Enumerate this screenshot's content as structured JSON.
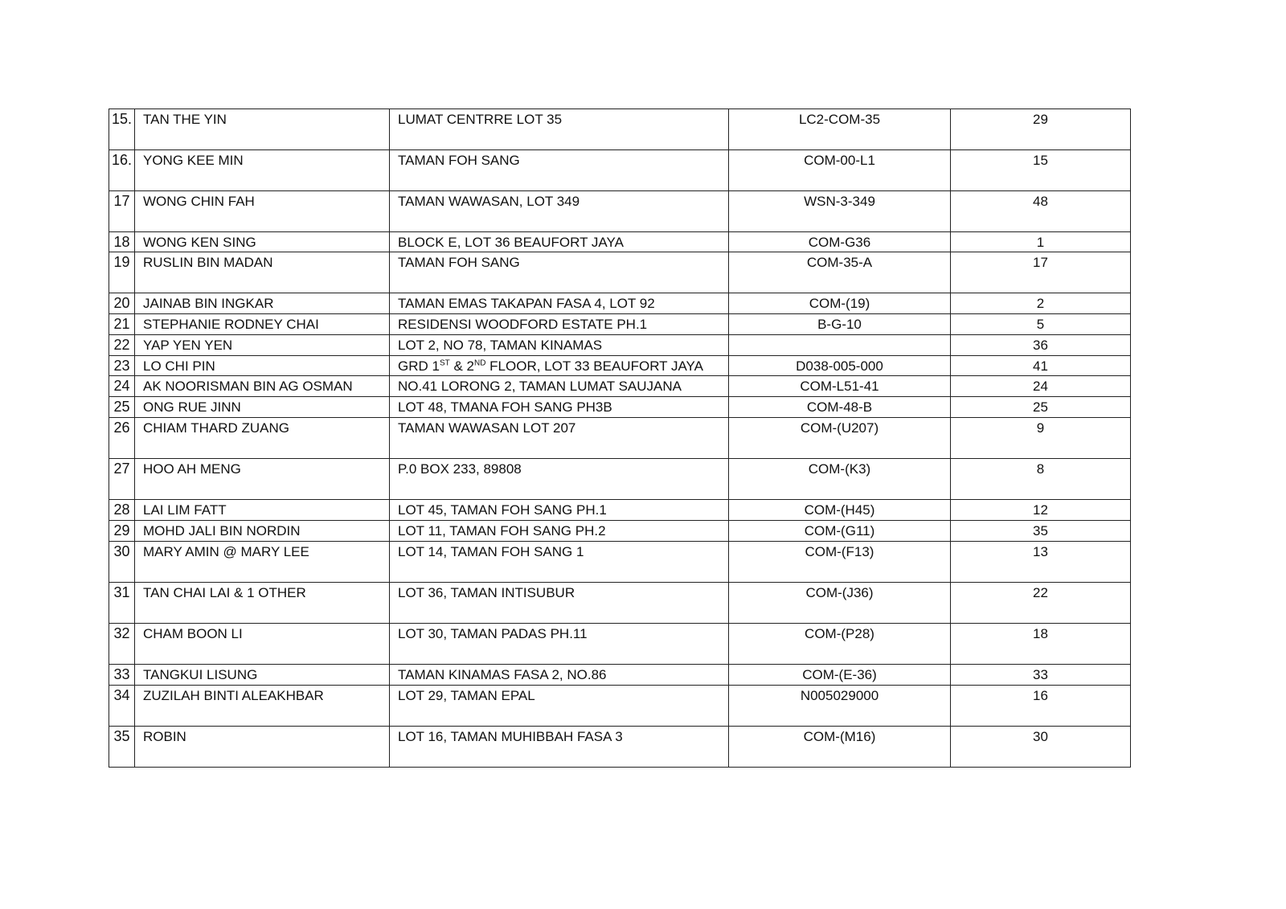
{
  "rows": [
    {
      "no": "15.",
      "name": "TAN THE YIN",
      "address": "LUMAT CENTRRE LOT 35",
      "code": "LC2-COM-35",
      "number": "29"
    },
    {
      "no": "16.",
      "name": "YONG KEE MIN",
      "address": "TAMAN FOH SANG",
      "code": "COM-00-L1",
      "number": "15"
    },
    {
      "no": "17",
      "name": "WONG CHIN FAH",
      "address": "TAMAN WAWASAN, LOT 349",
      "code": "WSN-3-349",
      "number": "48"
    },
    {
      "no": "18",
      "name": "WONG KEN SING",
      "address": "BLOCK E, LOT 36 BEAUFORT JAYA",
      "code": "COM-G36",
      "number": "1"
    },
    {
      "no": "19",
      "name": "RUSLIN BIN MADAN",
      "address": "TAMAN FOH SANG",
      "code": "COM-35-A",
      "number": "17"
    },
    {
      "no": "20",
      "name": "JAINAB BIN INGKAR",
      "address": "TAMAN EMAS TAKAPAN FASA 4, LOT 92",
      "code": "COM-(19)",
      "number": "2"
    },
    {
      "no": "21",
      "name": "STEPHANIE RODNEY CHAI",
      "address": "RESIDENSI WOODFORD ESTATE PH.1",
      "code": "B-G-10",
      "number": "5"
    },
    {
      "no": "22",
      "name": "YAP YEN YEN",
      "address": "LOT 2, NO 78, TAMAN KINAMAS",
      "code": "",
      "number": "36"
    },
    {
      "no": "23",
      "name": "LO CHI PIN",
      "address_parts": [
        {
          "t": "GRD 1"
        },
        {
          "t": "ST",
          "sup": true
        },
        {
          "t": " & 2"
        },
        {
          "t": "ND",
          "sup": true
        },
        {
          "t": " FLOOR, LOT 33 BEAUFORT JAYA"
        }
      ],
      "code": "D038-005-000",
      "number": "41"
    },
    {
      "no": "24",
      "name": "AK NOORISMAN BIN AG OSMAN",
      "address": "NO.41 LORONG 2, TAMAN LUMAT SAUJANA",
      "code": "COM-L51-41",
      "number": "24"
    },
    {
      "no": "25",
      "name": "ONG RUE JINN",
      "address": "LOT 48, TMANA FOH SANG PH3B",
      "code": "COM-48-B",
      "number": "25"
    },
    {
      "no": "26",
      "name": "CHIAM THARD ZUANG",
      "address": "TAMAN WAWASAN LOT 207",
      "code": "COM-(U207)",
      "number": "9"
    },
    {
      "no": "27",
      "name": "HOO AH MENG",
      "address": "P.0 BOX 233, 89808",
      "code": "COM-(K3)",
      "number": "8"
    },
    {
      "no": "28",
      "name": "LAI LIM FATT",
      "address": "LOT 45, TAMAN FOH SANG PH.1",
      "code": "COM-(H45)",
      "number": "12"
    },
    {
      "no": "29",
      "name": "MOHD JALI BIN NORDIN",
      "address": "LOT 11, TAMAN FOH SANG PH.2",
      "code": "COM-(G11)",
      "number": "35"
    },
    {
      "no": "30",
      "name": "MARY AMIN @ MARY LEE",
      "address": "LOT 14, TAMAN FOH SANG 1",
      "code": "COM-(F13)",
      "number": "13"
    },
    {
      "no": "31",
      "name": "TAN CHAI LAI & 1 OTHER",
      "address": "LOT 36, TAMAN INTISUBUR",
      "code": "COM-(J36)",
      "number": "22"
    },
    {
      "no": "32",
      "name": "CHAM BOON LI",
      "address": "LOT 30, TAMAN PADAS PH.11",
      "code": "COM-(P28)",
      "number": "18"
    },
    {
      "no": "33",
      "name": "TANGKUI LISUNG",
      "address": "TAMAN KINAMAS FASA 2, NO.86",
      "code": "COM-(E-36)",
      "number": "33"
    },
    {
      "no": "34",
      "name": "ZUZILAH BINTI ALEAKHBAR",
      "address": "LOT 29, TAMAN EPAL",
      "code": "N005029000",
      "number": "16"
    },
    {
      "no": "35",
      "name": "ROBIN",
      "address": "LOT 16, TAMAN MUHIBBAH FASA 3",
      "code": "COM-(M16)",
      "number": "30"
    }
  ]
}
